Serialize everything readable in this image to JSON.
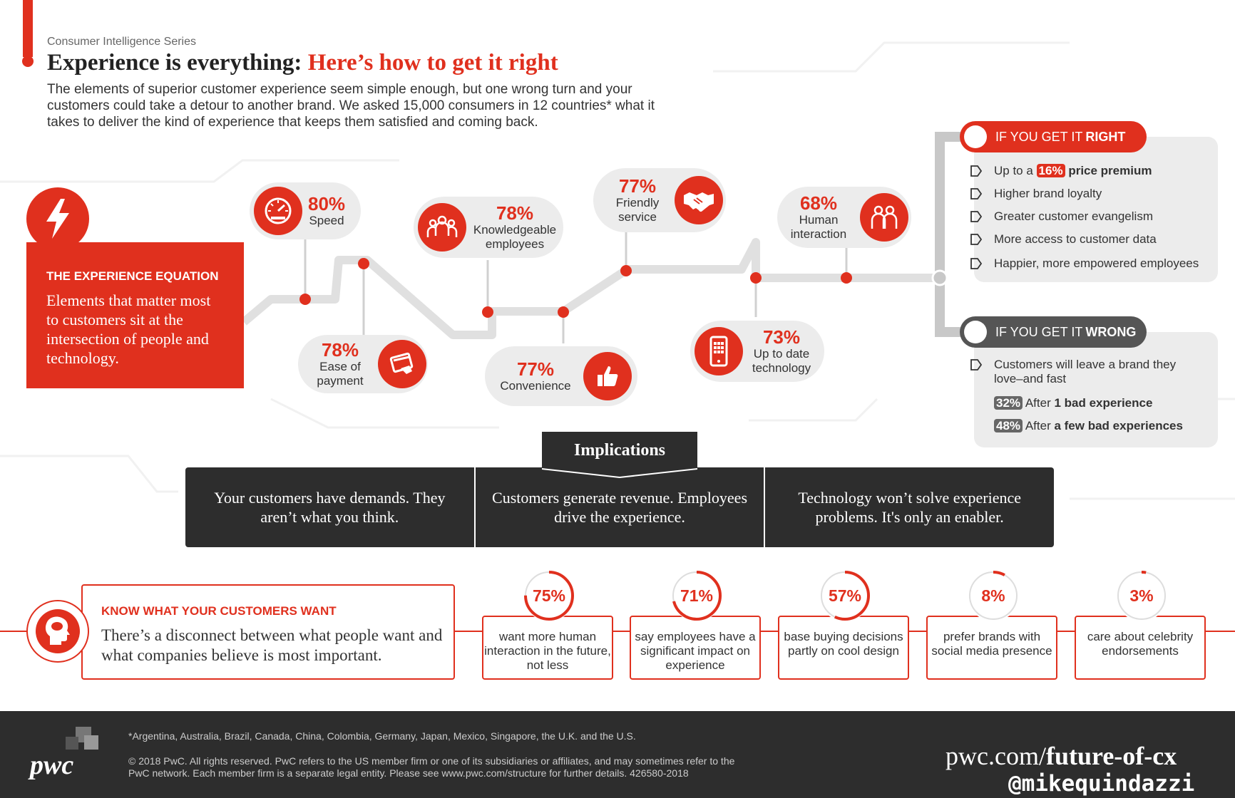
{
  "header": {
    "series": "Consumer Intelligence Series",
    "title_main": "Experience is everything:",
    "title_accent": "Here’s how to get it right",
    "intro": "The elements of superior customer experience seem simple enough, but one wrong turn and your customers could take a detour to another brand. We asked 15,000 consumers in 12 countries* what it takes to deliver the kind of experience that keeps them satisfied and coming back."
  },
  "equation": {
    "heading": "THE EXPERIENCE EQUATION",
    "text": "Elements that matter most to customers sit at the intersection of people and technology.",
    "icon": "lightning-icon"
  },
  "elements": [
    {
      "pct": "80%",
      "label": "Speed",
      "icon": "speedometer-icon"
    },
    {
      "pct": "78%",
      "label": "Ease of payment",
      "icon": "credit-card-icon"
    },
    {
      "pct": "78%",
      "label": "Knowledgeable employees",
      "icon": "people-group-icon"
    },
    {
      "pct": "77%",
      "label": "Convenience",
      "icon": "thumbs-up-icon"
    },
    {
      "pct": "77%",
      "label": "Friendly service",
      "icon": "handshake-icon"
    },
    {
      "pct": "73%",
      "label": "Up to date technology",
      "icon": "smartphone-icon"
    },
    {
      "pct": "68%",
      "label": "Human interaction",
      "icon": "two-people-icon"
    }
  ],
  "right": {
    "label": "IF YOU GET IT",
    "word": "RIGHT",
    "items": {
      "a_prefix": "Up to a",
      "a_value": "16%",
      "a_suffix": "price premium",
      "b": "Higher brand loyalty",
      "c": "Greater customer evangelism",
      "d": "More access to customer data",
      "e": "Happier, more empowered employees"
    }
  },
  "wrong": {
    "label": "IF YOU GET IT",
    "word": "WRONG",
    "lead": "Customers will leave a brand they love–and fast",
    "s1_value": "32%",
    "s1_prefix": "After",
    "s1_text": "1 bad experience",
    "s2_value": "48%",
    "s2_prefix": "After",
    "s2_text": "a few bad experiences"
  },
  "implications": {
    "title": "Implications",
    "items": [
      "Your customers have demands. They aren’t what you think.",
      "Customers generate revenue. Employees drive the experience.",
      "Technology won’t solve experience problems. It's only an enabler."
    ]
  },
  "know": {
    "heading": "KNOW WHAT YOUR CUSTOMERS WANT",
    "text": "There’s a disconnect between what people want and what companies believe is most important.",
    "icon": "head-thought-icon"
  },
  "stats": [
    {
      "pct": "75%",
      "value": 75,
      "label": "want more human interaction in the future, not less"
    },
    {
      "pct": "71%",
      "value": 71,
      "label": "say employees have a significant impact on experience"
    },
    {
      "pct": "57%",
      "value": 57,
      "label": "base buying decisions partly on cool design"
    },
    {
      "pct": "8%",
      "value": 8,
      "label": "prefer brands with social media presence"
    },
    {
      "pct": "3%",
      "value": 3,
      "label": "care about celebrity endorsements"
    }
  ],
  "footer": {
    "logo": "pwc",
    "note": "*Argentina, Australia, Brazil, Canada, China, Colombia, Germany, Japan, Mexico, Singapore, the U.K. and the U.S.",
    "copyright": "© 2018 PwC. All rights reserved. PwC refers to the US member firm or one of its subsidiaries or affiliates, and may sometimes refer to the PwC network. Each member firm is a separate legal entity. Please see www.pwc.com/structure for further details. 426580-2018",
    "url_prefix": "pwc.com/",
    "url_path": "future-of-cx",
    "handle": "@mikequindazzi"
  },
  "colors": {
    "accent": "#e0301e",
    "dark": "#2d2d2d",
    "pill": "#ececec"
  }
}
